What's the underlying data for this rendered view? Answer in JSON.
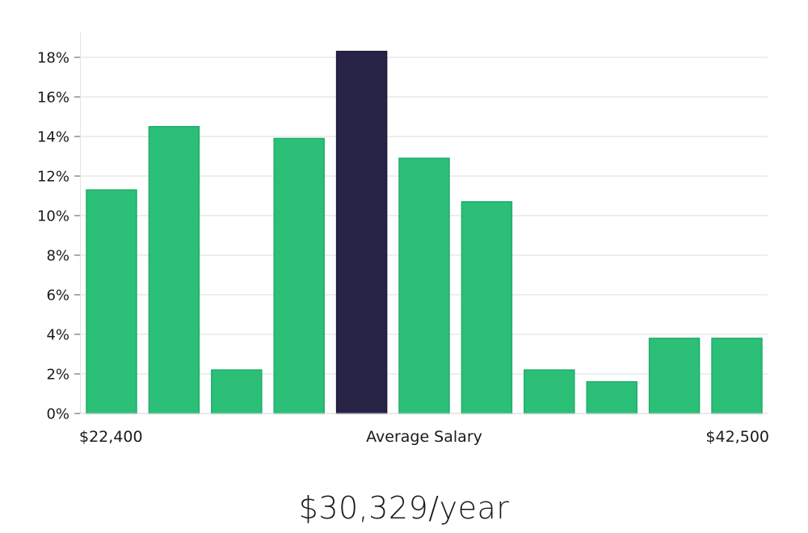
{
  "chart_data": {
    "type": "bar",
    "categories": [
      "1",
      "2",
      "3",
      "4",
      "5",
      "6",
      "7",
      "8",
      "9",
      "10",
      "11"
    ],
    "values": [
      11.3,
      14.5,
      2.2,
      13.9,
      18.3,
      12.9,
      10.7,
      2.2,
      1.6,
      3.8,
      3.8
    ],
    "highlight_index": 4,
    "ylim": [
      0,
      19
    ],
    "yticks": [
      0,
      2,
      4,
      6,
      8,
      10,
      12,
      14,
      16,
      18
    ],
    "ytick_suffix": "%",
    "grid": true,
    "bar_color": "#2bbf78",
    "highlight_color": "#282446",
    "x_labels": {
      "left": "$22,400",
      "center": "Average Salary",
      "right": "$42,500"
    }
  },
  "summary": {
    "average_salary": "$30,329/year"
  }
}
